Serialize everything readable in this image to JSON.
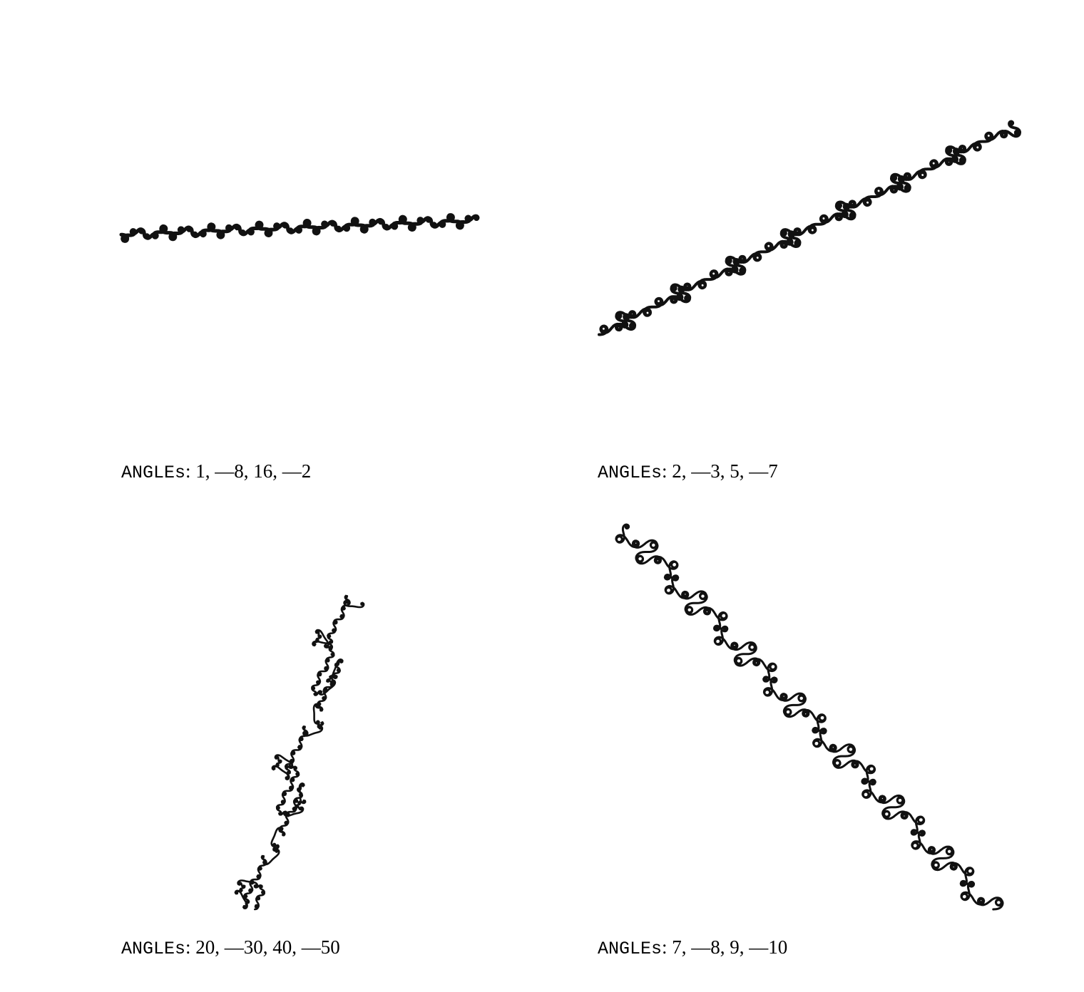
{
  "figure": {
    "panels": [
      {
        "label_keyword": "ANGLEs",
        "label_values": ": 1, —8, 16, —2",
        "angles": [
          1,
          -8,
          16,
          -2
        ]
      },
      {
        "label_keyword": "ANGLEs",
        "label_values": ": 2, —3, 5, —7",
        "angles": [
          2,
          -3,
          5,
          -7
        ]
      },
      {
        "label_keyword": "ANGLEs",
        "label_values": ": 20, —30, 40, —50",
        "angles": [
          20,
          -30,
          40,
          -50
        ]
      },
      {
        "label_keyword": "ANGLEs",
        "label_values": ": 7, —8, 9, —10",
        "angles": [
          7,
          -8,
          9,
          -10
        ]
      }
    ],
    "line_color": "#111111",
    "background": "#ffffff"
  }
}
